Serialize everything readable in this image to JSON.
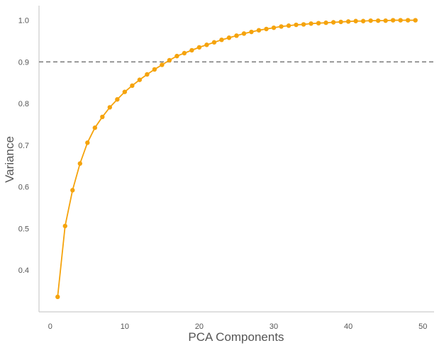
{
  "chart_data": {
    "type": "line",
    "title": "",
    "xlabel": "PCA Components",
    "ylabel": "Variance",
    "xlim": [
      -1.5,
      51.5
    ],
    "ylim": [
      0.3,
      1.035
    ],
    "xticks": [
      0,
      10,
      20,
      30,
      40,
      50
    ],
    "xtick_labels": [
      "0",
      "10",
      "20",
      "30",
      "40",
      "50"
    ],
    "yticks": [
      0.4,
      0.5,
      0.6,
      0.7,
      0.8,
      0.9,
      1.0
    ],
    "ytick_labels": [
      "0.4",
      "0.5",
      "0.6",
      "0.7",
      "0.8",
      "0.9",
      "1.0"
    ],
    "grid": false,
    "threshold": 0.9,
    "colors": {
      "line": "#f5a30c",
      "threshold": "#808080",
      "axis": "#cccccc"
    },
    "series": [
      {
        "x": [
          1,
          2,
          3,
          4,
          5,
          6,
          7,
          8,
          9,
          10,
          11,
          12,
          13,
          14,
          15,
          16,
          17,
          18,
          19,
          20,
          21,
          22,
          23,
          24,
          25,
          26,
          27,
          28,
          29,
          30,
          31,
          32,
          33,
          34,
          35,
          36,
          37,
          38,
          39,
          40,
          41,
          42,
          43,
          44,
          45,
          46,
          47,
          48,
          49
        ],
        "values": [
          0.336,
          0.506,
          0.592,
          0.656,
          0.706,
          0.742,
          0.768,
          0.791,
          0.81,
          0.828,
          0.843,
          0.857,
          0.87,
          0.882,
          0.893,
          0.904,
          0.914,
          0.921,
          0.928,
          0.935,
          0.941,
          0.947,
          0.953,
          0.958,
          0.963,
          0.968,
          0.972,
          0.976,
          0.979,
          0.982,
          0.985,
          0.987,
          0.989,
          0.99,
          0.992,
          0.993,
          0.994,
          0.995,
          0.996,
          0.997,
          0.998,
          0.998,
          0.999,
          0.999,
          0.999,
          1.0,
          1.0,
          1.0,
          1.0
        ]
      }
    ]
  }
}
